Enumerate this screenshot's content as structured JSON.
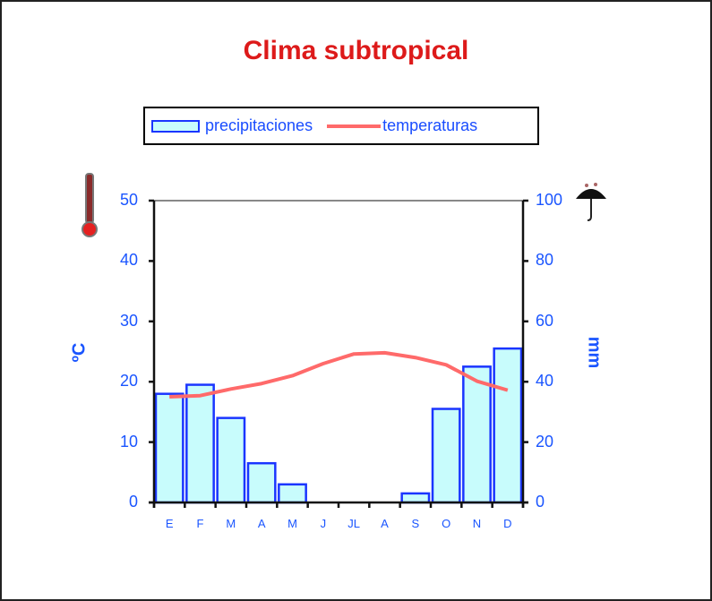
{
  "title": "Clima subtropical",
  "legend": {
    "precip_label": "precipitaciones",
    "temp_label": "temperaturas"
  },
  "axis": {
    "left_label": "ºC",
    "right_label": "mm",
    "left_ticks": [
      "50",
      "40",
      "30",
      "20",
      "10",
      "0"
    ],
    "right_ticks": [
      "100",
      "80",
      "60",
      "40",
      "20",
      "0"
    ]
  },
  "icons": {
    "left": "thermometer-icon",
    "right": "umbrella-icon"
  },
  "colors": {
    "title": "#dd1a1a",
    "bar_fill": "#c8fcfc",
    "bar_stroke": "#1a35ff",
    "line": "#ff6a6a",
    "axis_text": "#1a55ff"
  },
  "chart_data": {
    "type": "bar+line",
    "title": "Clima subtropical",
    "categories": [
      "E",
      "F",
      "M",
      "A",
      "M",
      "J",
      "JL",
      "A",
      "S",
      "O",
      "N",
      "D"
    ],
    "series": [
      {
        "name": "precipitaciones",
        "type": "bar",
        "axis": "right",
        "unit": "mm",
        "values": [
          36,
          39,
          28,
          13,
          6,
          0,
          0,
          0,
          3,
          31,
          45,
          51
        ]
      },
      {
        "name": "temperaturas",
        "type": "line",
        "axis": "left",
        "unit": "ºC",
        "values": [
          17.5,
          17.7,
          18.8,
          19.7,
          21,
          23,
          24.6,
          24.8,
          24,
          22.8,
          20.1,
          18.6
        ]
      }
    ],
    "ylabel_left": "ºC",
    "ylim_left": [
      0,
      50
    ],
    "ylabel_right": "mm",
    "ylim_right": [
      0,
      100
    ],
    "xlabel": "",
    "grid": false,
    "legend_position": "top"
  }
}
